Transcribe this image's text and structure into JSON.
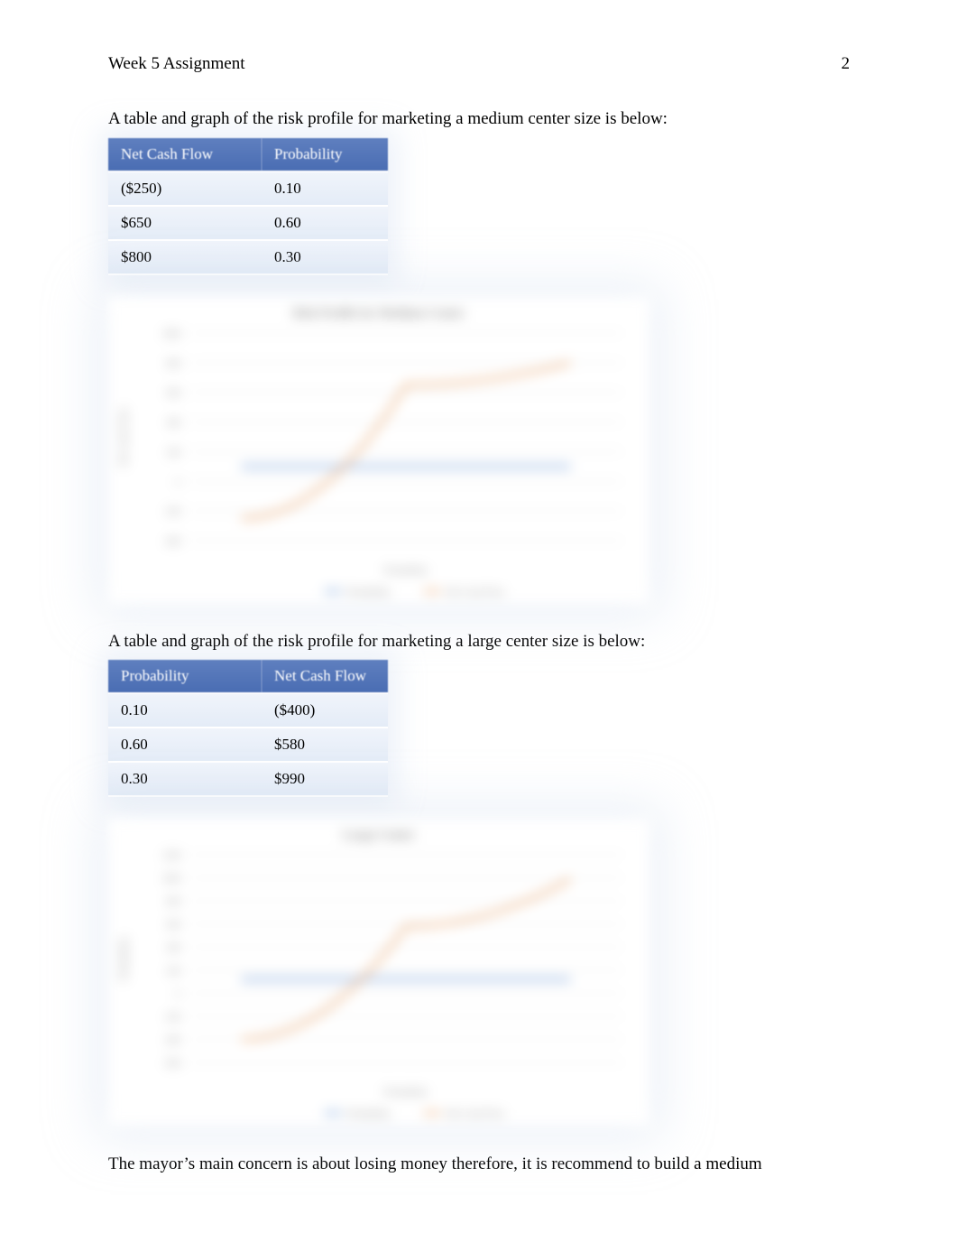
{
  "header": {
    "title": "Week 5 Assignment",
    "page_number": "2"
  },
  "section_medium": {
    "intro": "A table and graph of the risk profile for marketing a medium center size is below:",
    "table": {
      "columns": [
        "Net Cash Flow",
        "Probability"
      ],
      "rows": [
        [
          "($250)",
          "0.10"
        ],
        [
          "$650",
          "0.60"
        ],
        [
          "$800",
          "0.30"
        ]
      ]
    },
    "chart": {
      "type": "line",
      "title": "Risk Profile for Medium Center",
      "title_fontsize": 14,
      "title_color": "#8a8a8a",
      "xlabel": "Probability",
      "label_fontsize": 11,
      "label_color": "#8a8a8a",
      "ylabel": "Net Cash Flow",
      "ylim": [
        -400,
        1000
      ],
      "ytick_step": 200,
      "background_color": "#ffffff",
      "grid_color": "#e0e0e0",
      "series": [
        {
          "name": "Probability",
          "color": "#6f9bd8",
          "line_width": 3,
          "x": [
            0.1,
            0.6,
            0.3
          ],
          "y": [
            0.1,
            0.6,
            0.3
          ],
          "y_plot": [
            100,
            100,
            100
          ]
        },
        {
          "name": "Net Cash Flow",
          "color": "#e8a36a",
          "line_width": 3,
          "x": [
            0.1,
            0.6,
            0.3
          ],
          "y": [
            -250,
            650,
            800
          ]
        }
      ],
      "legend_position": "bottom",
      "legend_fontsize": 11
    }
  },
  "section_large": {
    "intro": "A table and graph of the risk profile for marketing a large center size is below:",
    "table": {
      "columns": [
        "Probability",
        "Net Cash Flow"
      ],
      "rows": [
        [
          "0.10",
          "($400)"
        ],
        [
          "0.60",
          "$580"
        ],
        [
          "0.30",
          "$990"
        ]
      ]
    },
    "chart": {
      "type": "line",
      "title": "Large Center",
      "title_fontsize": 14,
      "title_color": "#8a8a8a",
      "xlabel": "Probability",
      "label_fontsize": 11,
      "label_color": "#8a8a8a",
      "ylabel_left": "Probability",
      "ylabel_right": "Net Cash Flow",
      "ylim": [
        -600,
        1200
      ],
      "ytick_step": 200,
      "background_color": "#ffffff",
      "grid_color": "#e0e0e0",
      "series": [
        {
          "name": "Probability",
          "color": "#6f9bd8",
          "line_width": 3,
          "x": [
            0.1,
            0.6,
            0.3
          ],
          "y": [
            0.1,
            0.6,
            0.3
          ],
          "y_plot": [
            120,
            120,
            120
          ]
        },
        {
          "name": "Net Cash Flow",
          "color": "#e8a36a",
          "line_width": 3,
          "x": [
            0.1,
            0.6,
            0.3
          ],
          "y": [
            -400,
            580,
            990
          ]
        }
      ],
      "legend_position": "bottom",
      "legend_fontsize": 11
    }
  },
  "conclusion": "The mayor’s main concern is about losing money therefore, it is recommend to build a medium"
}
